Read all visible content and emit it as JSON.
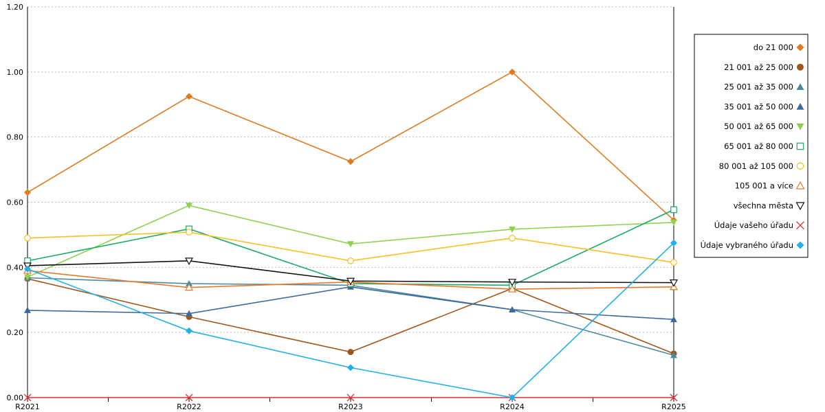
{
  "chart_data": {
    "type": "line",
    "title": "",
    "xlabel": "",
    "ylabel": "",
    "categories": [
      "R2021",
      "R2022",
      "R2023",
      "R2024",
      "R2025"
    ],
    "ylim": [
      0,
      1.2
    ],
    "y_ticks": [
      "0.00",
      "0.20",
      "0.40",
      "0.60",
      "0.80",
      "1.00",
      "1.20"
    ],
    "grid": "horizontal-dotted",
    "legend_position": "right",
    "series": [
      {
        "name": "do 21 000",
        "color": "#e07b20",
        "marker": "diamond",
        "values": [
          0.63,
          0.925,
          0.725,
          1.0,
          0.545
        ]
      },
      {
        "name": "21 001 až 25 000",
        "color": "#a0561a",
        "marker": "circle",
        "values": [
          0.365,
          0.248,
          0.14,
          0.335,
          0.135
        ]
      },
      {
        "name": "25 001 až 35 000",
        "color": "#4a8aa0",
        "marker": "triangle-up",
        "values": [
          0.368,
          0.35,
          0.345,
          0.27,
          0.13
        ]
      },
      {
        "name": "35 001 až 50 000",
        "color": "#3d6a9a",
        "marker": "triangle-up",
        "values": [
          0.268,
          0.258,
          0.34,
          0.27,
          0.24
        ]
      },
      {
        "name": "50 001 až 65 000",
        "color": "#8fd14f",
        "marker": "triangle-down",
        "values": [
          0.37,
          0.59,
          0.472,
          0.517,
          0.538
        ]
      },
      {
        "name": "65 001 až 80 000",
        "color": "#1aaa66",
        "marker": "square-open",
        "values": [
          0.42,
          0.518,
          0.35,
          0.345,
          0.577
        ]
      },
      {
        "name": "80 001 až 105 000",
        "color": "#f5c020",
        "marker": "circle-open",
        "values": [
          0.49,
          0.508,
          0.42,
          0.49,
          0.415
        ]
      },
      {
        "name": "105 001 a více",
        "color": "#e8782a",
        "marker": "triangle-up-open",
        "values": [
          0.39,
          0.338,
          0.355,
          0.333,
          0.34
        ]
      },
      {
        "name": "všechna města",
        "color": "#111111",
        "marker": "triangle-down-open",
        "values": [
          0.405,
          0.42,
          0.358,
          0.355,
          0.353
        ]
      },
      {
        "name": "Údaje vašeho úřadu",
        "color": "#e03030",
        "marker": "x",
        "values": [
          0.0,
          0.0,
          0.0,
          0.0,
          0.0
        ]
      },
      {
        "name": "Údaje vybraného úřadu",
        "color": "#22b0e8",
        "marker": "diamond",
        "values": [
          0.395,
          0.205,
          0.092,
          0.0,
          0.475
        ]
      }
    ]
  }
}
